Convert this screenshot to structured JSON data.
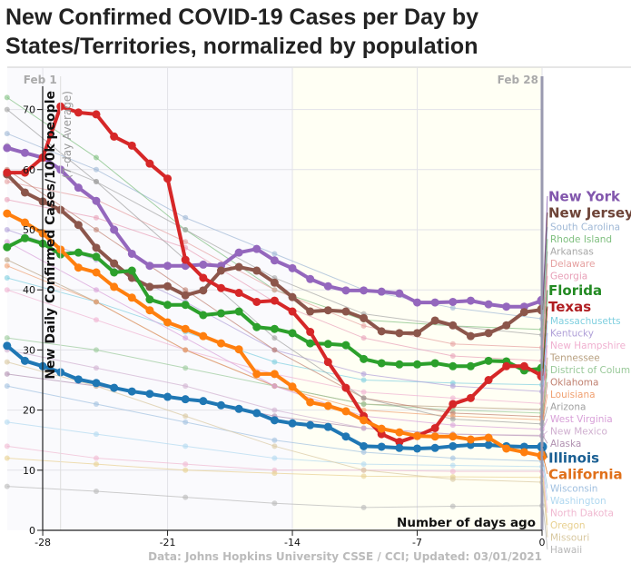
{
  "chart_data": {
    "type": "line",
    "title": "New Confirmed COVID-19 Cases per Day by States/Territories, normalized by population",
    "xlabel": "Number of days ago",
    "ylabel": "New Daily Confirmed Cases/100k people",
    "ylabel_sub": "(7-day Average)",
    "footer": "Data: Johns Hopkins University CSSE / CCI; Updated: 03/01/2021",
    "xlim": [
      -30,
      0
    ],
    "ylim": [
      0,
      74
    ],
    "x_ticks": [
      -28,
      -21,
      -14,
      -7,
      0
    ],
    "y_ticks": [
      0,
      10,
      20,
      30,
      40,
      50,
      60,
      70
    ],
    "grid": true,
    "date_markers": [
      {
        "label": "Feb 1",
        "x": -27
      },
      {
        "label": "Feb 28",
        "x": 0
      }
    ],
    "highlighted_x": [
      -30,
      -29,
      -28,
      -27,
      -26,
      -25,
      -24,
      -23,
      -22,
      -21,
      -20,
      -19,
      -18,
      -17,
      -16,
      -15,
      -14,
      -13,
      -12,
      -11,
      -10,
      -9,
      -8,
      -7,
      -6,
      -5,
      -4,
      -3,
      -2,
      -1,
      0
    ],
    "highlighted": [
      {
        "name": "New York",
        "color": "#9467bd",
        "label_color": "#8257ad",
        "values": [
          63.6,
          62.8,
          62,
          60,
          57,
          54.8,
          50,
          46,
          44,
          44,
          44,
          44.2,
          44,
          46.2,
          46.8,
          44.9,
          43.6,
          41.8,
          40.6,
          39.9,
          39.9,
          39.7,
          39.4,
          37.9,
          37.9,
          38,
          38.2,
          37.6,
          37.2,
          37.2,
          38.2
        ]
      },
      {
        "name": "New Jersey",
        "color": "#8c564b",
        "label_color": "#6e4438",
        "values": [
          59.2,
          56.2,
          54.7,
          53.3,
          50.8,
          47,
          44.4,
          42,
          40.5,
          40.6,
          39.1,
          39.9,
          43.2,
          43.8,
          43.2,
          41.2,
          38.8,
          36.4,
          36.6,
          36.4,
          35.3,
          33.1,
          32.8,
          32.8,
          34.9,
          34.1,
          32.3,
          32.8,
          34.1,
          36.3,
          36.7
        ]
      },
      {
        "name": "Florida",
        "color": "#2ca02c",
        "label_color": "#238a23",
        "values": [
          47.1,
          48.6,
          47.7,
          45.9,
          46.2,
          45.5,
          42.9,
          43.2,
          38.4,
          37.5,
          37.5,
          35.8,
          36.1,
          36.4,
          33.8,
          33.5,
          32.8,
          31.1,
          31,
          30.8,
          28.5,
          27.8,
          27.6,
          27.6,
          27.8,
          27.3,
          27.3,
          28.2,
          28.1,
          26.6,
          26.9
        ]
      },
      {
        "name": "Texas",
        "color": "#d62728",
        "label_color": "#b01e22",
        "values": [
          59.5,
          59.5,
          62,
          70.5,
          69.5,
          69.2,
          65.5,
          64,
          61,
          58.5,
          45,
          42,
          40.3,
          39.5,
          38,
          38.2,
          36.4,
          33,
          28,
          23.7,
          19,
          16,
          14.7,
          15.7,
          17,
          21,
          22,
          25,
          27.3,
          27.3,
          25.7
        ]
      },
      {
        "name": "Illinois",
        "color": "#1f77b4",
        "label_color": "#1a5f93",
        "values": [
          30.7,
          28.2,
          27.3,
          26.3,
          25.1,
          24.5,
          23.7,
          23.1,
          22.7,
          22.2,
          21.8,
          21.5,
          20.8,
          20.2,
          19.5,
          18.3,
          17.8,
          17.5,
          17.2,
          15.6,
          14,
          13.9,
          13.7,
          13.6,
          13.7,
          14,
          14.2,
          14.2,
          14,
          13.9,
          13.9
        ]
      },
      {
        "name": "California",
        "color": "#ff7f0e",
        "label_color": "#e0701a",
        "values": [
          52.7,
          51.2,
          49.4,
          46.7,
          43.7,
          42.9,
          40.5,
          38.7,
          36.6,
          34.6,
          33.5,
          32.3,
          31.1,
          30.1,
          26,
          26,
          23.9,
          21.3,
          20.7,
          19.8,
          18.3,
          16.9,
          16.3,
          15.7,
          15.6,
          15.6,
          15.1,
          15.4,
          13.6,
          13,
          12.4
        ]
      }
    ],
    "background_x": [
      -30,
      -25,
      -20,
      -15,
      -10,
      -5,
      0
    ],
    "background": [
      {
        "name": "South Carolina",
        "color": "#9fb8d6",
        "values": [
          66,
          60,
          52,
          46,
          40,
          37,
          35.2
        ]
      },
      {
        "name": "Rhode Island",
        "color": "#7fbf7f",
        "values": [
          72,
          62,
          50,
          40,
          35,
          34,
          33.4
        ]
      },
      {
        "name": "Arkansas",
        "color": "#a7a7a7",
        "values": [
          64,
          58,
          50,
          42,
          36,
          34,
          32.5
        ]
      },
      {
        "name": "Delaware",
        "color": "#e6a0a0",
        "values": [
          58,
          55,
          48,
          40,
          34,
          31,
          30.4
        ]
      },
      {
        "name": "Georgia",
        "color": "#e8a0b8",
        "values": [
          55,
          52,
          47,
          38,
          32,
          29,
          28.2
        ]
      },
      {
        "name": "Massachusetts",
        "color": "#7fcfdf",
        "values": [
          42,
          38,
          33,
          28,
          25,
          24.5,
          24.2
        ]
      },
      {
        "name": "Kentucky",
        "color": "#b0a0d8",
        "values": [
          50,
          45,
          38,
          30,
          26,
          24,
          23.1
        ]
      },
      {
        "name": "New Hampshire",
        "color": "#f0b0d0",
        "values": [
          40,
          35,
          30,
          26,
          23,
          22,
          21.1
        ]
      },
      {
        "name": "Tennessee",
        "color": "#b8a080",
        "values": [
          45,
          38,
          30,
          24,
          21,
          20.5,
          20.1
        ]
      },
      {
        "name": "District of Columbia",
        "color": "#99c999",
        "values": [
          32,
          30,
          27,
          24,
          21,
          20,
          19.5
        ]
      },
      {
        "name": "Oklahoma",
        "color": "#c08070",
        "values": [
          60,
          50,
          40,
          30,
          22,
          19.5,
          18.9
        ]
      },
      {
        "name": "Louisiana",
        "color": "#f0a070",
        "values": [
          44,
          38,
          30,
          24,
          20,
          19,
          18.4
        ]
      },
      {
        "name": "Arizona",
        "color": "#a0a0a0",
        "values": [
          70,
          58,
          45,
          32,
          22,
          18.5,
          17.7
        ]
      },
      {
        "name": "West Virginia",
        "color": "#d8a0d8",
        "values": [
          48,
          40,
          32,
          24,
          19,
          17.5,
          16.8
        ]
      },
      {
        "name": "Alaska",
        "color": "#b090b0",
        "values": [
          26,
          24,
          22,
          19,
          17,
          16,
          15.7
        ]
      },
      {
        "name": "New Mexico",
        "color": "#d0b0d0",
        "values": [
          30,
          27,
          24,
          20,
          17,
          16,
          15.8
        ]
      },
      {
        "name": "Wisconsin",
        "color": "#a0c0e0",
        "values": [
          24,
          21,
          18,
          15,
          13,
          12,
          11.5
        ]
      },
      {
        "name": "Washington",
        "color": "#b0d8f0",
        "values": [
          18,
          16,
          14,
          12,
          11,
          10.8,
          10.6
        ]
      },
      {
        "name": "North Dakota",
        "color": "#f0b8d0",
        "values": [
          14,
          12,
          11,
          10,
          10,
          9.8,
          9.8
        ]
      },
      {
        "name": "Oregon",
        "color": "#e8d090",
        "values": [
          12,
          11,
          10,
          9.5,
          9,
          8.9,
          8.8
        ]
      },
      {
        "name": "Missouri",
        "color": "#d8c8a0",
        "values": [
          28,
          24,
          19,
          14,
          10,
          8.5,
          8
        ]
      },
      {
        "name": "Hawaii",
        "color": "#b8b8b8",
        "values": [
          7.3,
          6.5,
          5.5,
          4.5,
          3.8,
          4,
          4.1
        ]
      }
    ]
  }
}
